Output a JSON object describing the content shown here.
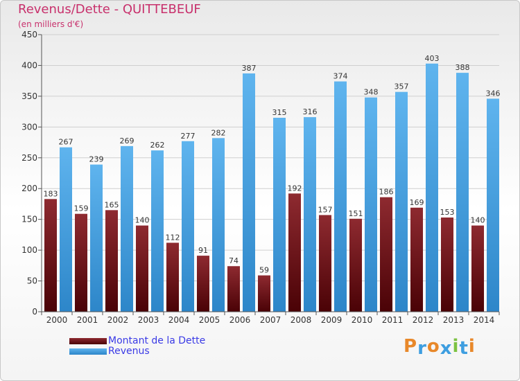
{
  "header": {
    "title": "Revenus/Dette - QUITTEBEUF",
    "subtitle": "(en milliers d'€)"
  },
  "legend": {
    "debt_label": "Montant de la Dette",
    "revenue_label": "Revenus"
  },
  "logo": {
    "text": "Proxiti"
  },
  "colors": {
    "debt": "#6e0f14",
    "revenue": "#3e9ee0",
    "title": "#c8306c",
    "legend_text": "#3a3ae6"
  },
  "chart_data": {
    "type": "bar",
    "title": "Revenus/Dette - QUITTEBEUF",
    "subtitle": "(en milliers d'€)",
    "categories": [
      "2000",
      "2001",
      "2002",
      "2003",
      "2004",
      "2005",
      "2006",
      "2007",
      "2008",
      "2009",
      "2010",
      "2011",
      "2012",
      "2013",
      "2014"
    ],
    "series": [
      {
        "name": "Montant de la Dette",
        "values": [
          183,
          159,
          165,
          140,
          112,
          91,
          74,
          59,
          192,
          157,
          151,
          186,
          169,
          153,
          140
        ]
      },
      {
        "name": "Revenus",
        "values": [
          267,
          239,
          269,
          262,
          277,
          282,
          387,
          315,
          316,
          374,
          348,
          357,
          403,
          388,
          346
        ]
      }
    ],
    "ylim": [
      0,
      450
    ],
    "yticks": [
      0,
      50,
      100,
      150,
      200,
      250,
      300,
      350,
      400,
      450
    ],
    "grid": true,
    "legend_position": "bottom-left"
  }
}
